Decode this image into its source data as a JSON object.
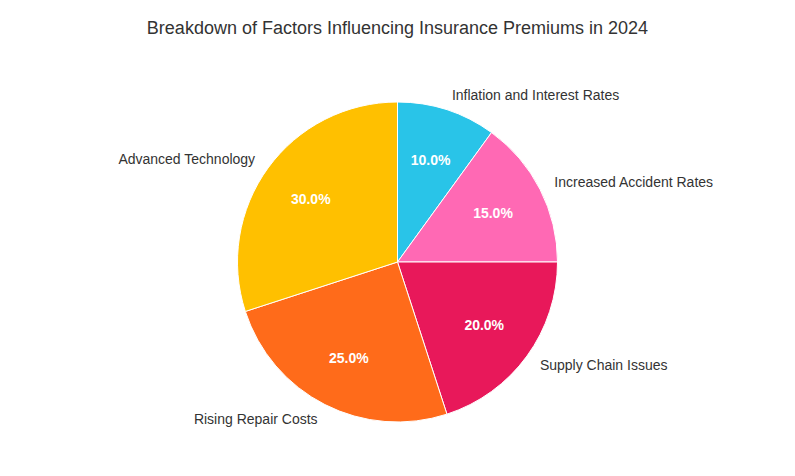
{
  "chart_data": {
    "type": "pie",
    "title": "Breakdown of Factors Influencing Insurance Premiums in 2024",
    "categories": [
      "Inflation and Interest Rates",
      "Increased Accident Rates",
      "Supply Chain Issues",
      "Rising Repair Costs",
      "Advanced Technology"
    ],
    "values": [
      10.0,
      15.0,
      20.0,
      25.0,
      30.0
    ],
    "value_labels": [
      "10.0%",
      "15.0%",
      "20.0%",
      "25.0%",
      "30.0%"
    ],
    "colors": [
      "#29C4E8",
      "#FF69B4",
      "#E8185A",
      "#FF6B1A",
      "#FFC000"
    ],
    "data_labels": true
  }
}
